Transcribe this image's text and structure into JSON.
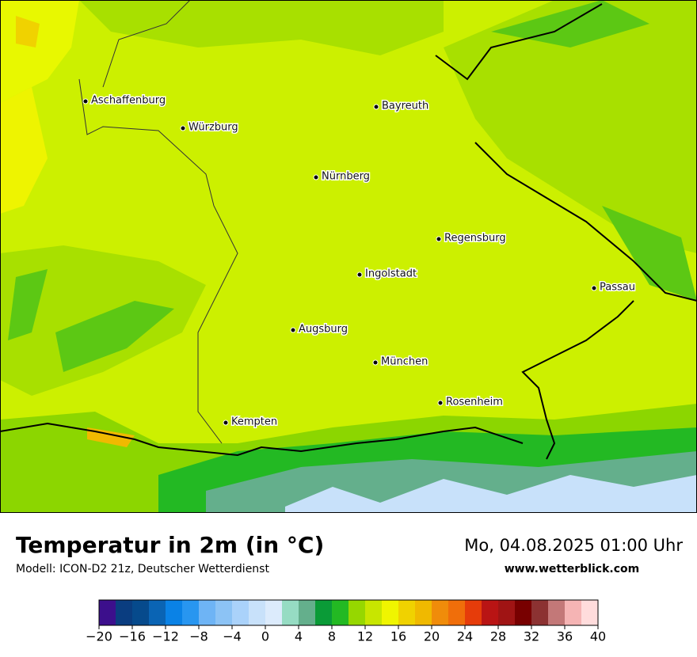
{
  "header": {
    "title": "Temperatur in 2m (in °C)",
    "subtitle": "Modell: ICON-D2 21z, Deutscher Wetterdienst",
    "date": "Mo, 04.08.2025 01:00 Uhr",
    "website": "www.wetterblick.com"
  },
  "cities": [
    "Aschaffenburg",
    "Würzburg",
    "Bayreuth",
    "Nürnberg",
    "Regensburg",
    "Ingolstadt",
    "Passau",
    "Augsburg",
    "München",
    "Rosenheim",
    "Kempten"
  ],
  "legend": {
    "range": [
      -20,
      40
    ],
    "colors": [
      "#3c0f8c",
      "#0a3d80",
      "#064a8c",
      "#0a64b4",
      "#0a82e6",
      "#2896f0",
      "#6eb4f5",
      "#8cc3f5",
      "#aad2fa",
      "#c8e1fa",
      "#dcebfc",
      "#96dcc3",
      "#64af8c",
      "#0a9b37",
      "#23b923",
      "#96d700",
      "#c8e600",
      "#f0f500",
      "#f0d200",
      "#f0b900",
      "#f08c0a",
      "#f06e0a",
      "#e63c0a",
      "#b91414",
      "#a01414",
      "#780000",
      "#8c3232",
      "#c37878",
      "#f5b4b4",
      "#ffdcdc"
    ],
    "ticks": [
      {
        "value": -20,
        "label": "−20"
      },
      {
        "value": -16,
        "label": "−16"
      },
      {
        "value": -12,
        "label": "−12"
      },
      {
        "value": -8,
        "label": "−8"
      },
      {
        "value": -4,
        "label": "−4"
      },
      0,
      4,
      8,
      12,
      16,
      20,
      24,
      28,
      32,
      36,
      40
    ]
  }
}
